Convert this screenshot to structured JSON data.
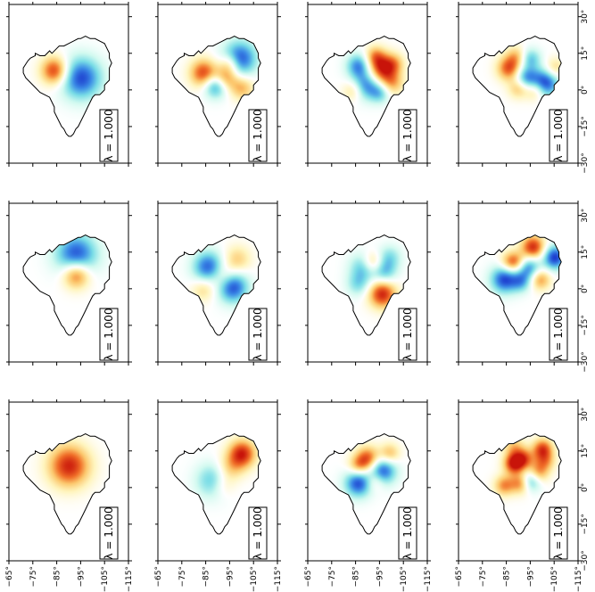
{
  "panels": [
    {
      "row": 0,
      "col": 0,
      "label": "λ = 1.000",
      "blobs": [
        [
          -84,
          8,
          4,
          0.9
        ],
        [
          -95,
          5,
          6,
          -0.9
        ]
      ]
    },
    {
      "row": 0,
      "col": 1,
      "label": "λ = 1.000",
      "blobs": [
        [
          -84,
          7,
          4,
          0.85
        ],
        [
          -99,
          13,
          5,
          -0.9
        ],
        [
          -93,
          5,
          3.5,
          0.7
        ],
        [
          -89,
          2,
          3.5,
          -0.8
        ],
        [
          -100,
          1,
          3.5,
          0.5
        ],
        [
          -95,
          11,
          3,
          0.5
        ]
      ]
    },
    {
      "row": 0,
      "col": 2,
      "label": "λ = 1.000",
      "blobs": [
        [
          -96,
          9,
          4,
          0.9
        ],
        [
          -89,
          2,
          4,
          -0.7
        ],
        [
          -100,
          3,
          3.5,
          0.5
        ],
        [
          -95,
          -1,
          3,
          -0.5
        ],
        [
          -86,
          10,
          3.5,
          -0.7
        ],
        [
          -93,
          14,
          3,
          0.5
        ],
        [
          -101,
          11,
          3,
          0.4
        ],
        [
          -84,
          0,
          3,
          0.4
        ]
      ]
    },
    {
      "row": 0,
      "col": 3,
      "label": "λ = 1.000",
      "blobs": [
        [
          -101,
          3,
          4,
          -0.95
        ],
        [
          -86,
          9,
          3.5,
          0.8
        ],
        [
          -93,
          5,
          3.5,
          -0.7
        ],
        [
          -90,
          1,
          3,
          0.5
        ],
        [
          -95,
          13,
          3,
          -0.5
        ],
        [
          -89,
          14,
          3,
          0.4
        ],
        [
          -97,
          0,
          3,
          0.5
        ],
        [
          -105,
          9,
          3,
          0.4
        ]
      ]
    },
    {
      "row": 1,
      "col": 0,
      "label": "λ = 1.000",
      "blobs": [
        [
          -93,
          14,
          6,
          -0.9
        ],
        [
          -93,
          6,
          4,
          0.85
        ]
      ]
    },
    {
      "row": 1,
      "col": 1,
      "label": "λ = 1.000",
      "blobs": [
        [
          -86,
          9,
          4.5,
          -0.85
        ],
        [
          -96,
          1,
          4.5,
          -0.95
        ],
        [
          -92,
          5,
          4,
          0.4
        ],
        [
          -98,
          12,
          4,
          0.4
        ],
        [
          -84,
          0,
          3.5,
          0.35
        ]
      ]
    },
    {
      "row": 1,
      "col": 2,
      "label": "λ = 1.000",
      "blobs": [
        [
          -96,
          -2,
          4,
          0.95
        ],
        [
          -88,
          9,
          4,
          -0.5
        ],
        [
          -92,
          11,
          3,
          0.5
        ],
        [
          -97,
          7,
          3.5,
          -0.5
        ],
        [
          -99,
          13,
          3.5,
          -0.4
        ],
        [
          -86,
          2,
          3.5,
          -0.4
        ]
      ]
    },
    {
      "row": 1,
      "col": 3,
      "label": "λ = 1.000",
      "blobs": [
        [
          -96,
          17,
          3.5,
          0.95
        ],
        [
          -84,
          4,
          4,
          -0.9
        ],
        [
          -94,
          9,
          3.5,
          -0.75
        ],
        [
          -89,
          11,
          3,
          0.6
        ],
        [
          -105,
          13,
          3.5,
          -0.95
        ],
        [
          -99,
          4,
          3,
          0.6
        ],
        [
          -91,
          3,
          3,
          -0.5
        ],
        [
          -86,
          11,
          3,
          0.4
        ]
      ]
    },
    {
      "row": 2,
      "col": 0,
      "label": "λ = 1.000",
      "blobs": [
        [
          -90,
          9,
          6,
          0.95
        ]
      ]
    },
    {
      "row": 2,
      "col": 1,
      "label": "λ = 1.000",
      "blobs": [
        [
          -100,
          14,
          4,
          0.95
        ],
        [
          -88,
          3,
          5,
          -0.55
        ],
        [
          -95,
          8,
          4,
          0.4
        ],
        [
          -92,
          1,
          3.5,
          0.3
        ]
      ]
    },
    {
      "row": 2,
      "col": 2,
      "label": "λ = 1.000",
      "blobs": [
        [
          -86,
          2,
          4,
          -0.9
        ],
        [
          -96,
          7,
          4,
          -0.9
        ],
        [
          -90,
          12,
          3.5,
          0.8
        ],
        [
          -99,
          14,
          3,
          0.5
        ],
        [
          -86,
          9,
          3,
          0.5
        ],
        [
          -93,
          3,
          3,
          0.4
        ]
      ]
    },
    {
      "row": 2,
      "col": 3,
      "label": "λ = 1.000",
      "blobs": [
        [
          -88,
          10,
          3,
          0.95
        ],
        [
          -100,
          16,
          3,
          0.8
        ],
        [
          -95,
          3,
          3,
          -0.75
        ],
        [
          -92,
          12,
          3,
          0.7
        ],
        [
          -84,
          1,
          3,
          0.6
        ],
        [
          -98,
          6,
          3,
          0.6
        ],
        [
          -91,
          2,
          3,
          0.7
        ],
        [
          -101,
          11,
          3,
          0.5
        ],
        [
          -88,
          17,
          3,
          0.4
        ]
      ]
    }
  ],
  "axis_bottom": {
    "ticks": [
      "−65°",
      "−75°",
      "−85°",
      "−95°",
      "−105°",
      "−115°"
    ]
  },
  "axis_right": {
    "ticks": [
      "−30°",
      "−15°",
      "0°",
      "15°",
      "30°"
    ]
  },
  "colormap": "jet-like (red positive, blue negative, white zero)"
}
